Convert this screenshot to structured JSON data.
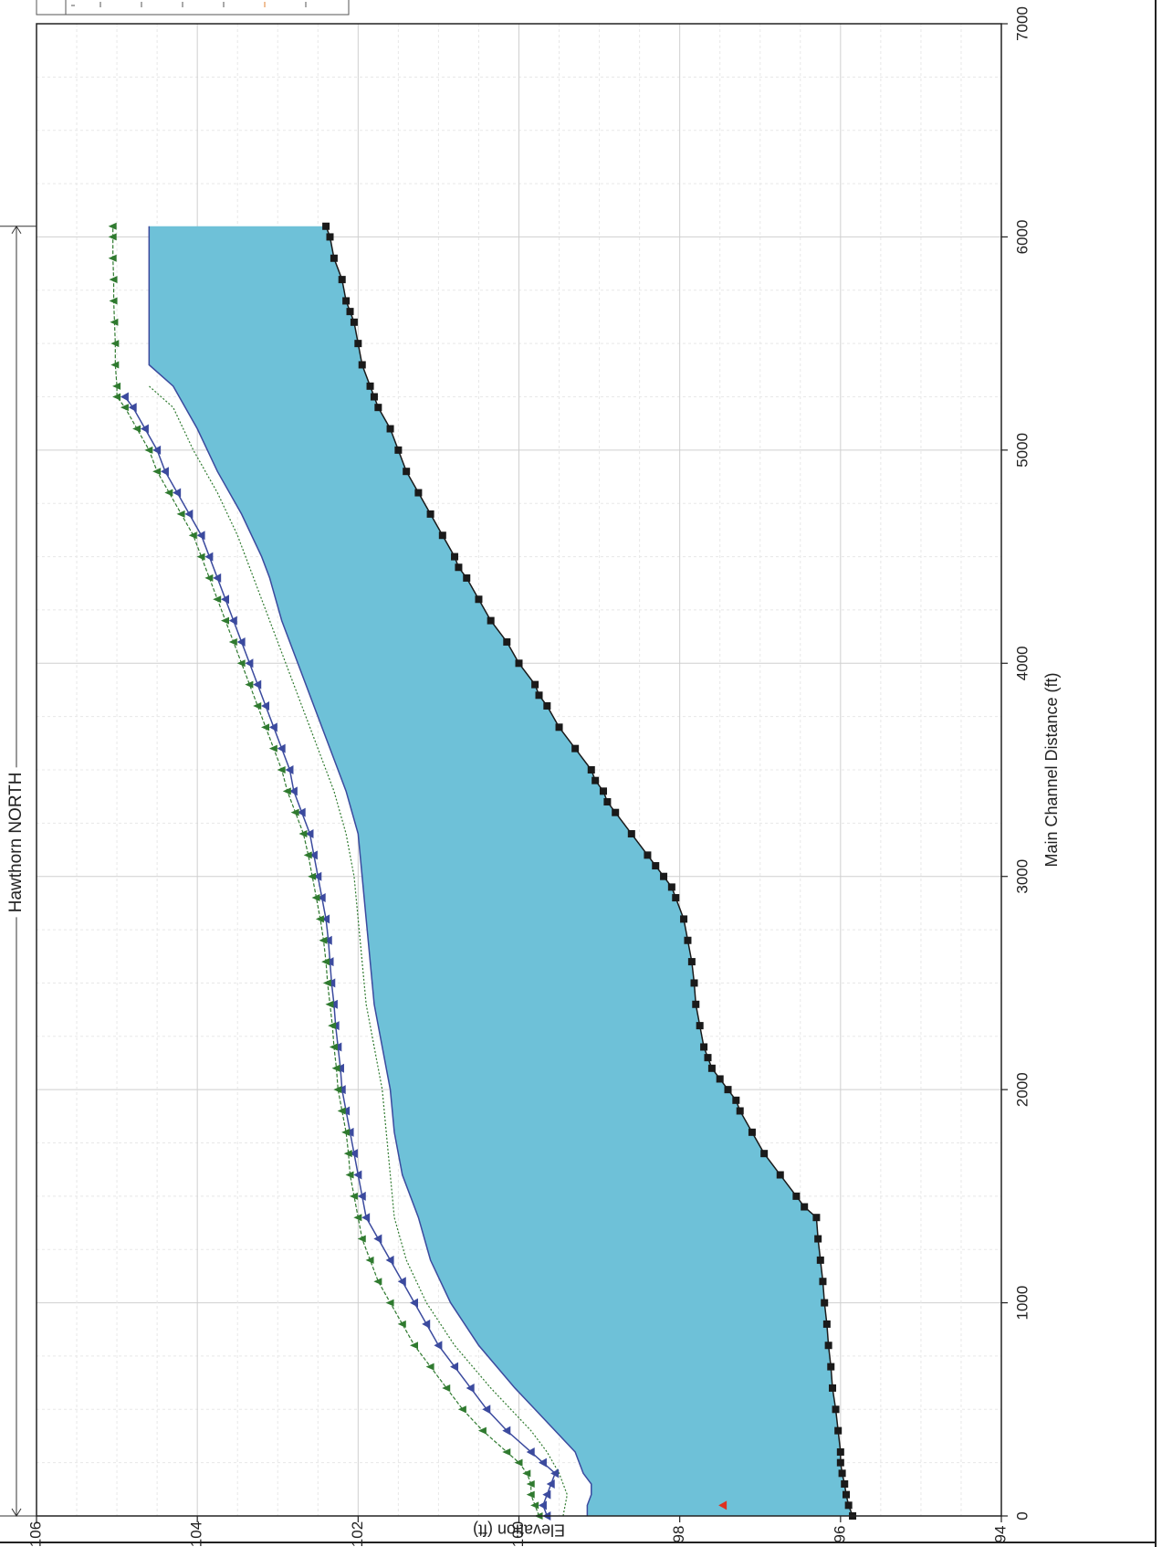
{
  "chart_data": {
    "type": "line",
    "title": "",
    "xlabel": "Main Channel Distance (ft)",
    "ylabel": "Elevation (ft)",
    "xlim": [
      0,
      7000
    ],
    "ylim": [
      94,
      106
    ],
    "x_ticks": [
      "0",
      "1000",
      "2000",
      "3000",
      "4000",
      "5000",
      "6000",
      "7000"
    ],
    "y_ticks": [
      "94",
      "96",
      "98",
      "100",
      "102",
      "104",
      "106"
    ],
    "grid": true,
    "orientation": "rotated 90° counter-clockwise",
    "reach_label": "Hawthorn NORTH",
    "reach_range": [
      0,
      6050
    ],
    "colors": {
      "water_fill": "#6ec1d8",
      "ground": "#1a1a1a",
      "series_blue": "#3b4a9e",
      "series_green": "#2f7a2f",
      "energy_dotted": "#2f7a2f",
      "marker_red": "#e03020"
    },
    "series": [
      {
        "key": "ground",
        "x": [
          0,
          50,
          100,
          150,
          200,
          250,
          300,
          400,
          500,
          600,
          700,
          800,
          900,
          1000,
          1100,
          1200,
          1300,
          1400,
          1450,
          1500,
          1600,
          1700,
          1800,
          1900,
          1950,
          2000,
          2050,
          2100,
          2150,
          2200,
          2300,
          2400,
          2500,
          2600,
          2700,
          2800,
          2900,
          2950,
          3000,
          3050,
          3100,
          3200,
          3300,
          3350,
          3400,
          3450,
          3500,
          3600,
          3700,
          3800,
          3850,
          3900,
          4000,
          4100,
          4200,
          4300,
          4400,
          4450,
          4500,
          4600,
          4700,
          4800,
          4900,
          5000,
          5100,
          5200,
          5250,
          5300,
          5400,
          5500,
          5600,
          5650,
          5700,
          5800,
          5900,
          6000,
          6050
        ],
        "y": [
          95.85,
          95.9,
          95.93,
          95.95,
          95.98,
          96.0,
          96.0,
          96.03,
          96.06,
          96.1,
          96.12,
          96.15,
          96.17,
          96.2,
          96.22,
          96.25,
          96.28,
          96.3,
          96.45,
          96.55,
          96.75,
          96.95,
          97.1,
          97.25,
          97.3,
          97.4,
          97.5,
          97.6,
          97.65,
          97.7,
          97.75,
          97.8,
          97.82,
          97.85,
          97.9,
          97.95,
          98.05,
          98.1,
          98.2,
          98.3,
          98.4,
          98.6,
          98.8,
          98.9,
          98.95,
          99.05,
          99.1,
          99.3,
          99.5,
          99.65,
          99.75,
          99.8,
          100.0,
          100.15,
          100.35,
          100.5,
          100.65,
          100.75,
          100.8,
          100.95,
          101.1,
          101.25,
          101.4,
          101.5,
          101.6,
          101.75,
          101.8,
          101.85,
          101.95,
          102.0,
          102.05,
          102.1,
          102.15,
          102.2,
          102.3,
          102.35,
          102.4
        ]
      },
      {
        "key": "water_surface",
        "x": [
          0,
          50,
          100,
          150,
          200,
          300,
          400,
          500,
          600,
          800,
          1000,
          1200,
          1400,
          1500,
          1600,
          1800,
          2000,
          2200,
          2400,
          2600,
          2800,
          3000,
          3200,
          3400,
          3600,
          3800,
          4000,
          4200,
          4400,
          4500,
          4700,
          4900,
          5100,
          5300,
          5400,
          6050
        ],
        "y": [
          99.15,
          99.15,
          99.1,
          99.1,
          99.2,
          99.3,
          99.55,
          99.8,
          100.05,
          100.5,
          100.85,
          101.1,
          101.25,
          101.35,
          101.45,
          101.55,
          101.6,
          101.7,
          101.8,
          101.85,
          101.9,
          101.95,
          102.0,
          102.15,
          102.35,
          102.55,
          102.75,
          102.95,
          103.1,
          103.2,
          103.45,
          103.75,
          104.0,
          104.3,
          104.6,
          104.6
        ]
      },
      {
        "key": "energy_dotted",
        "x": [
          0,
          100,
          200,
          300,
          400,
          500,
          600,
          800,
          1000,
          1200,
          1400,
          1600,
          1800,
          2000,
          2200,
          2400,
          2600,
          2800,
          3000,
          3200,
          3400,
          3600,
          3800,
          4000,
          4200,
          4400,
          4600,
          4800,
          5000,
          5200,
          5300
        ],
        "y": [
          99.45,
          99.4,
          99.5,
          99.65,
          99.85,
          100.1,
          100.35,
          100.8,
          101.15,
          101.4,
          101.55,
          101.6,
          101.65,
          101.7,
          101.8,
          101.9,
          101.95,
          102.0,
          102.05,
          102.15,
          102.3,
          102.5,
          102.7,
          102.9,
          103.1,
          103.3,
          103.5,
          103.75,
          104.05,
          104.3,
          104.6
        ]
      },
      {
        "key": "series_blue",
        "x": [
          0,
          50,
          100,
          150,
          200,
          250,
          300,
          400,
          500,
          600,
          700,
          800,
          900,
          1000,
          1100,
          1200,
          1300,
          1400,
          1500,
          1600,
          1700,
          1800,
          1900,
          2000,
          2100,
          2200,
          2300,
          2400,
          2500,
          2600,
          2700,
          2800,
          2900,
          3000,
          3100,
          3200,
          3300,
          3400,
          3500,
          3600,
          3700,
          3800,
          3900,
          4000,
          4100,
          4200,
          4300,
          4400,
          4500,
          4600,
          4700,
          4800,
          4900,
          5000,
          5100,
          5200,
          5250
        ],
        "y": [
          99.65,
          99.7,
          99.65,
          99.6,
          99.55,
          99.7,
          99.85,
          100.15,
          100.4,
          100.6,
          100.8,
          101.0,
          101.15,
          101.3,
          101.45,
          101.6,
          101.75,
          101.9,
          101.95,
          102.0,
          102.05,
          102.1,
          102.15,
          102.2,
          102.22,
          102.25,
          102.28,
          102.3,
          102.33,
          102.35,
          102.37,
          102.4,
          102.45,
          102.5,
          102.55,
          102.6,
          102.7,
          102.8,
          102.85,
          102.95,
          103.05,
          103.15,
          103.25,
          103.35,
          103.45,
          103.55,
          103.65,
          103.75,
          103.85,
          103.95,
          104.1,
          104.25,
          104.4,
          104.5,
          104.65,
          104.8,
          104.9
        ]
      },
      {
        "key": "series_green",
        "x": [
          0,
          50,
          100,
          150,
          200,
          250,
          300,
          400,
          500,
          600,
          700,
          800,
          900,
          1000,
          1100,
          1200,
          1300,
          1400,
          1500,
          1600,
          1700,
          1800,
          1900,
          2000,
          2100,
          2200,
          2300,
          2400,
          2500,
          2600,
          2700,
          2800,
          2900,
          3000,
          3100,
          3200,
          3300,
          3400,
          3500,
          3600,
          3700,
          3800,
          3900,
          4000,
          4100,
          4200,
          4300,
          4400,
          4500,
          4600,
          4700,
          4800,
          4900,
          5000,
          5100,
          5200,
          5250,
          5300,
          5400,
          5500,
          5600,
          5700,
          5800,
          5900,
          6000,
          6050
        ],
        "y": [
          99.75,
          99.8,
          99.85,
          99.85,
          99.9,
          100.0,
          100.15,
          100.45,
          100.7,
          100.9,
          101.1,
          101.3,
          101.45,
          101.6,
          101.75,
          101.85,
          101.95,
          102.0,
          102.05,
          102.1,
          102.12,
          102.15,
          102.2,
          102.25,
          102.27,
          102.3,
          102.32,
          102.35,
          102.38,
          102.4,
          102.43,
          102.47,
          102.52,
          102.57,
          102.62,
          102.68,
          102.78,
          102.88,
          102.95,
          103.05,
          103.15,
          103.25,
          103.35,
          103.45,
          103.55,
          103.65,
          103.75,
          103.85,
          103.95,
          104.05,
          104.2,
          104.35,
          104.5,
          104.6,
          104.75,
          104.9,
          105.0,
          105.0,
          105.02,
          105.02,
          105.03,
          105.04,
          105.04,
          105.05,
          105.05,
          105.05
        ]
      }
    ],
    "red_marker": {
      "x": 50,
      "y": 97.45
    }
  }
}
